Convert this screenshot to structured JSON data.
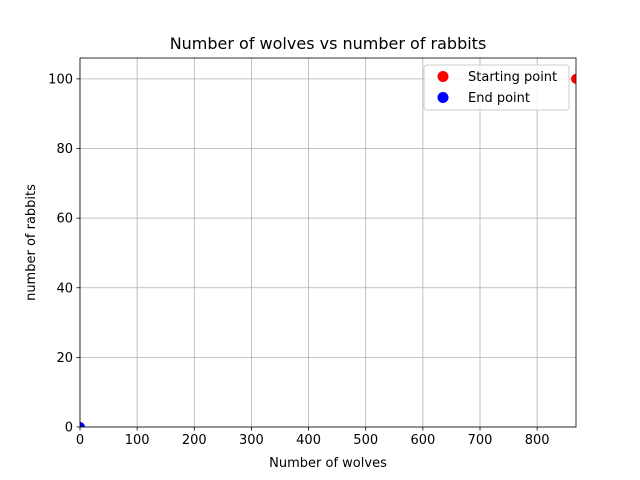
{
  "chart_data": {
    "type": "scatter",
    "title": "Number of wolves vs number of rabbits",
    "xlabel": "Number of wolves",
    "ylabel": "number of rabbits",
    "xlim": [
      0,
      868
    ],
    "ylim": [
      0,
      106
    ],
    "x_ticks": [
      0,
      100,
      200,
      300,
      400,
      500,
      600,
      700,
      800
    ],
    "y_ticks": [
      0,
      20,
      40,
      60,
      80,
      100
    ],
    "grid": true,
    "legend_placement": "upper right",
    "series": [
      {
        "name": "Starting point",
        "color": "#ff0000",
        "points": [
          [
            868,
            100
          ]
        ]
      },
      {
        "name": "End point",
        "color": "#0000ff",
        "points": [
          [
            0,
            0
          ]
        ]
      }
    ]
  }
}
